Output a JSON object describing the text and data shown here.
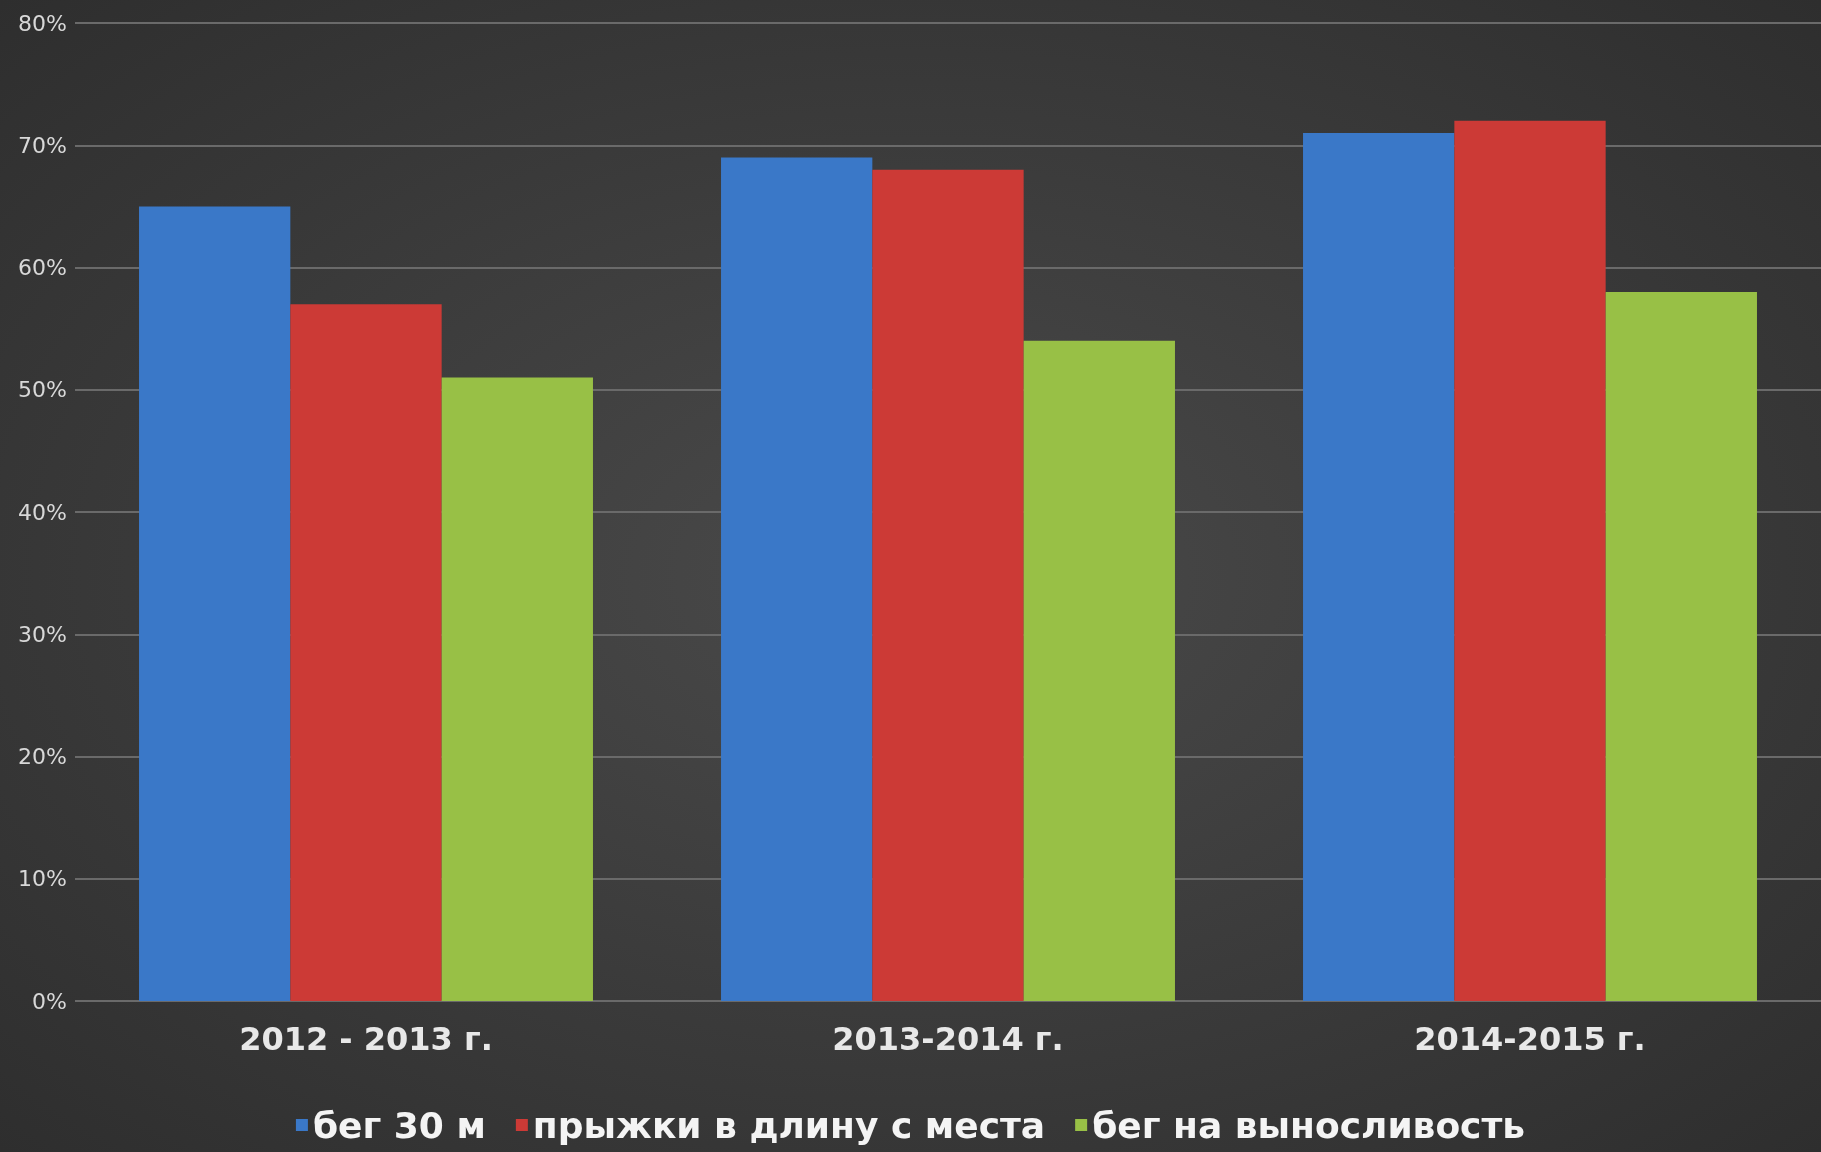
{
  "chart_data": {
    "type": "bar",
    "categories": [
      "2012 - 2013 г.",
      "2013-2014 г.",
      "2014-2015 г."
    ],
    "series": [
      {
        "name": "бег 30 м",
        "color": "#3a78c8",
        "values": [
          65,
          69,
          71
        ]
      },
      {
        "name": "прыжки в длину с места",
        "color": "#cc3a36",
        "values": [
          57,
          68,
          72
        ]
      },
      {
        "name": "бег на выносливость",
        "color": "#98c046",
        "values": [
          51,
          54,
          58
        ]
      }
    ],
    "ylim": [
      0,
      80
    ],
    "yticks": [
      {
        "value": 0,
        "label": "0%"
      },
      {
        "value": 10,
        "label": "10%"
      },
      {
        "value": 20,
        "label": "20%"
      },
      {
        "value": 30,
        "label": "30%"
      },
      {
        "value": 40,
        "label": "40%"
      },
      {
        "value": 50,
        "label": "50%"
      },
      {
        "value": 60,
        "label": "60%"
      },
      {
        "value": 70,
        "label": "70%"
      },
      {
        "value": 80,
        "label": "80%"
      }
    ],
    "grid": "y",
    "legend": "bottom"
  }
}
